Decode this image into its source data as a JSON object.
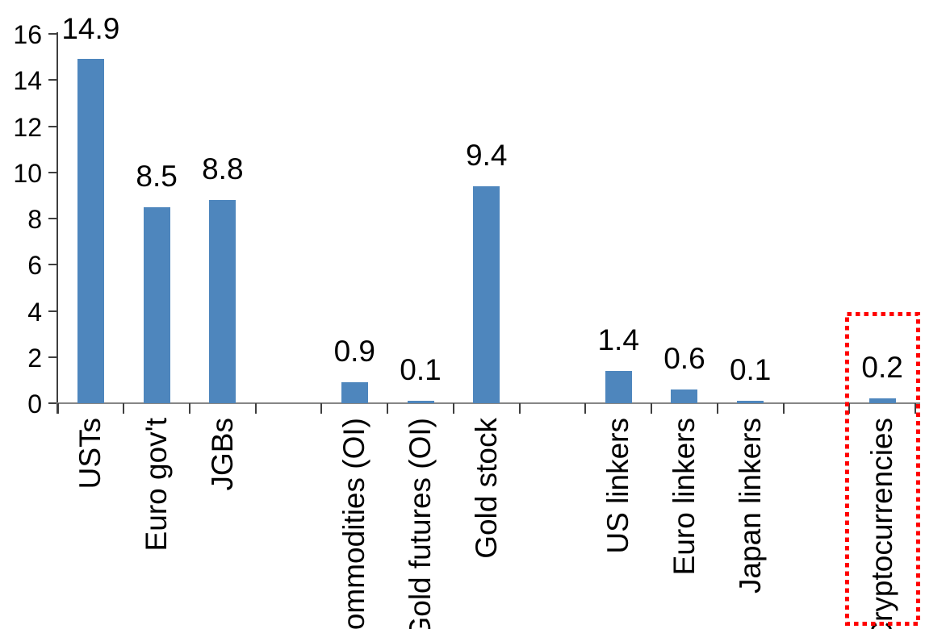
{
  "chart_data": {
    "type": "bar",
    "title": "",
    "categories": [
      "USTs",
      "Euro gov't",
      "JGBs",
      "Commodities (OI)",
      "Gold futures (OI)",
      "Gold stock",
      "US linkers",
      "Euro linkers",
      "Japan linkers",
      "Cryptocurrencies"
    ],
    "values": [
      14.9,
      8.5,
      8.8,
      0.9,
      0.1,
      9.4,
      1.4,
      0.6,
      0.1,
      0.2
    ],
    "value_labels": [
      "14.9",
      "8.5",
      "8.8",
      "0.9",
      "0.1",
      "9.4",
      "1.4",
      "0.6",
      "0.1",
      "0.2"
    ],
    "xlabel": "",
    "ylabel": "",
    "ylim": [
      0,
      16
    ],
    "yticks": [
      0,
      2,
      4,
      6,
      8,
      10,
      12,
      14,
      16
    ],
    "ytick_labels": [
      "0",
      "2",
      "4",
      "6",
      "8",
      "10",
      "12",
      "14",
      "16"
    ],
    "grid": false,
    "legend": false,
    "bar_color": "#4E86BD",
    "axis_color": "#3f3f3f",
    "baseline_color": "#868686",
    "category_slots": [
      0,
      1,
      2,
      4,
      5,
      6,
      8,
      9,
      10,
      12
    ],
    "total_slots": 13,
    "group_gaps_after": [
      "JGBs",
      "Gold stock",
      "Japan linkers"
    ],
    "highlight": {
      "category": "Cryptocurrencies",
      "shape": "dotted-rectangle",
      "color": "#FF0000"
    }
  }
}
